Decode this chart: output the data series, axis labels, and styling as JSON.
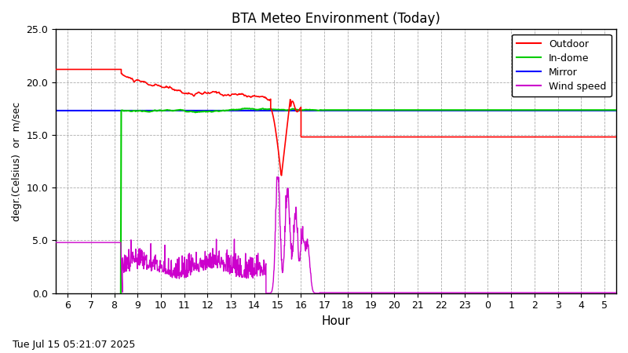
{
  "title": "BTA Meteo Environment (Today)",
  "xlabel": "Hour",
  "ylabel": "degr.(Celsius)  or  m/sec",
  "timestamp": "Tue Jul 15 05:21:07 2025",
  "ylim": [
    0.0,
    25.0
  ],
  "yticks": [
    0.0,
    5.0,
    10.0,
    15.0,
    20.0,
    25.0
  ],
  "xtick_labels": [
    "6",
    "7",
    "8",
    "9",
    "10",
    "11",
    "12",
    "13",
    "14",
    "15",
    "16",
    "17",
    "18",
    "19",
    "20",
    "21",
    "22",
    "23",
    "0",
    "1",
    "2",
    "3",
    "4",
    "5"
  ],
  "colors": {
    "outdoor": "#ff0000",
    "indome": "#00cc00",
    "mirror": "#0000ff",
    "wind": "#cc00cc",
    "background": "#ffffff",
    "grid": "#888888"
  }
}
